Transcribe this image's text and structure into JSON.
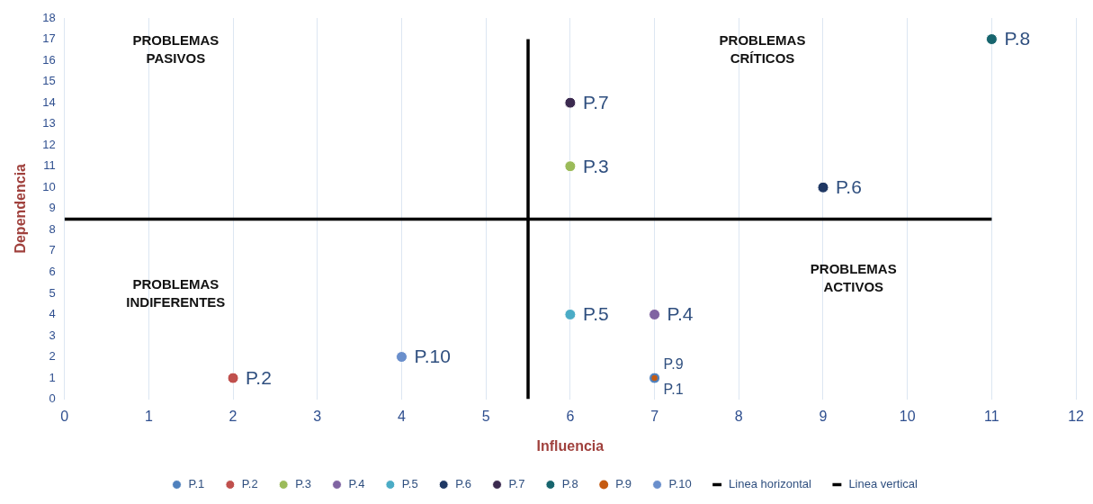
{
  "chart_data": {
    "type": "scatter",
    "xlabel": "Influencia",
    "ylabel": "Dependencia",
    "xlim": [
      0,
      12
    ],
    "xticks": [
      0,
      1,
      2,
      3,
      4,
      5,
      6,
      7,
      8,
      9,
      10,
      11,
      12
    ],
    "ylim": [
      0,
      18
    ],
    "yticks": [
      0,
      1,
      2,
      3,
      4,
      5,
      6,
      7,
      8,
      9,
      10,
      11,
      12,
      13,
      14,
      15,
      16,
      17,
      18
    ],
    "grid": "x",
    "legend": "bottom",
    "marker": "circle",
    "annotations": [
      "PROBLEMAS\nPASIVOS",
      "PROBLEMAS\nCRÍTICOS",
      "PROBLEMAS\nINDIFERENTES",
      "PROBLEMAS\nACTIVOS"
    ],
    "series": [
      {
        "name": "P.1",
        "color": "#4f81bd",
        "x": [
          7
        ],
        "values": [
          1
        ]
      },
      {
        "name": "P.2",
        "color": "#c0504d",
        "x": [
          2
        ],
        "values": [
          1
        ]
      },
      {
        "name": "P.3",
        "color": "#9bbb59",
        "x": [
          6
        ],
        "values": [
          11
        ]
      },
      {
        "name": "P.4",
        "color": "#8064a2",
        "x": [
          7
        ],
        "values": [
          4
        ]
      },
      {
        "name": "P.5",
        "color": "#4bacc6",
        "x": [
          6
        ],
        "values": [
          4
        ]
      },
      {
        "name": "P.6",
        "color": "#1f3864",
        "x": [
          9
        ],
        "values": [
          10
        ]
      },
      {
        "name": "P.7",
        "color": "#3b2a4f",
        "x": [
          6
        ],
        "values": [
          14
        ]
      },
      {
        "name": "P.8",
        "color": "#17656e",
        "x": [
          11
        ],
        "values": [
          17
        ]
      },
      {
        "name": "P.9",
        "color": "#c55a11",
        "x": [
          7
        ],
        "values": [
          1
        ]
      },
      {
        "name": "P.10",
        "color": "#6a8fcc",
        "x": [
          4
        ],
        "values": [
          2
        ]
      },
      {
        "name": "Linea horizontal",
        "type": "line",
        "marker": "none",
        "color": "#000000",
        "x": [
          0,
          11
        ],
        "values": [
          8.5,
          8.5
        ]
      },
      {
        "name": "Linea vertical",
        "type": "line",
        "marker": "none",
        "color": "#000000",
        "x": [
          5.5,
          5.5
        ],
        "values": [
          0,
          17
        ]
      }
    ]
  }
}
